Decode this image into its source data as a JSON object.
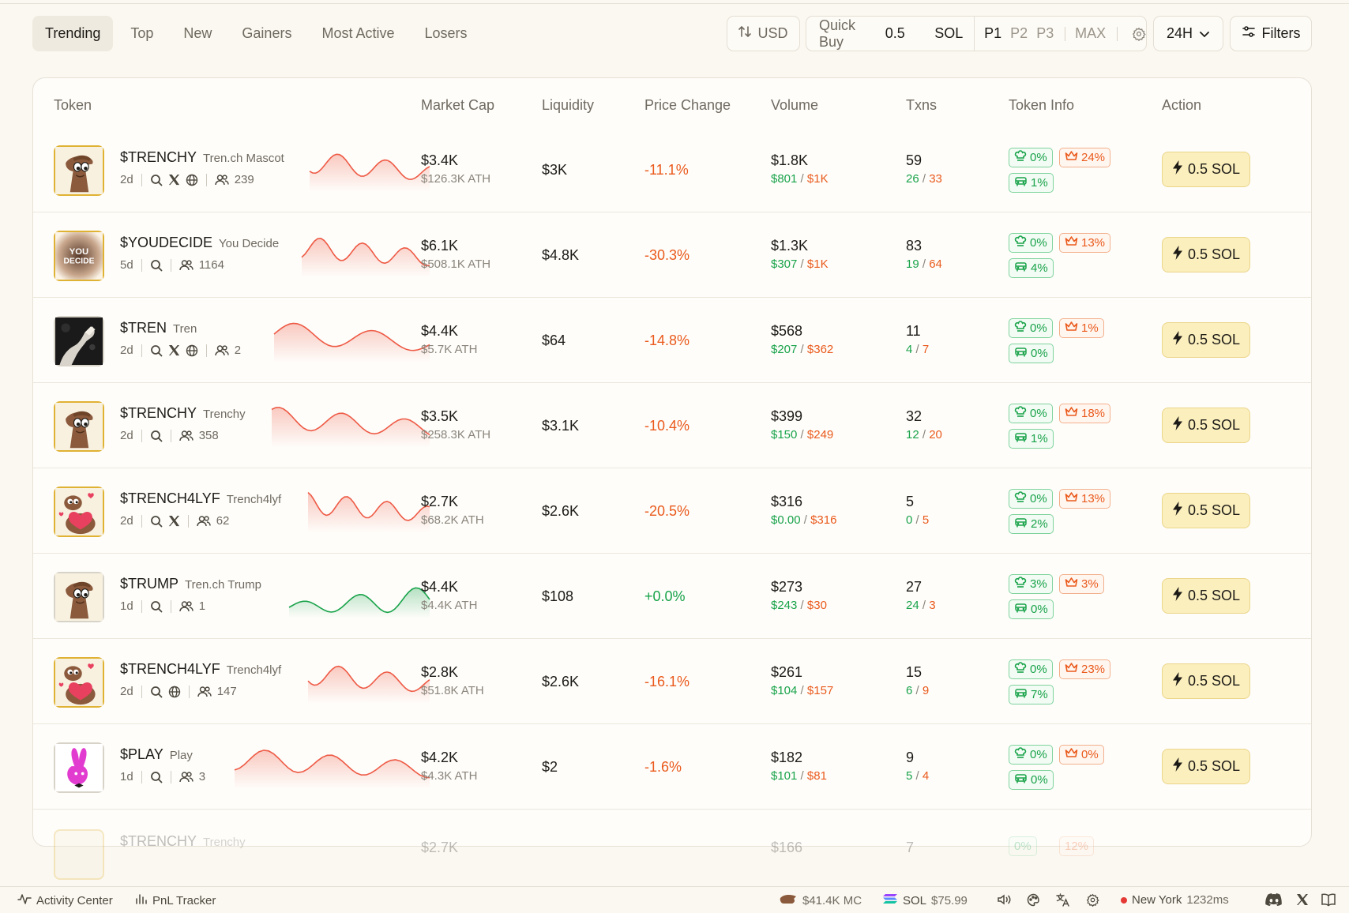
{
  "tabs": [
    "Trending",
    "Top",
    "New",
    "Gainers",
    "Most Active",
    "Losers"
  ],
  "active_tab": "Trending",
  "currency_toggle": {
    "label": "USD",
    "icon": "sort-arrows-icon"
  },
  "quick_buy": {
    "label": "Quick Buy",
    "amount": "0.5",
    "currency": "SOL",
    "presets": [
      "P1",
      "P2",
      "P3"
    ],
    "active_preset": "P1",
    "max_label": "MAX",
    "settings_icon": "gear-icon"
  },
  "timeframe": {
    "value": "24H",
    "icon": "chevron-down-icon"
  },
  "filters": {
    "label": "Filters",
    "icon": "sliders-icon"
  },
  "columns": [
    "Token",
    "Market Cap",
    "Liquidity",
    "Price Change",
    "Volume",
    "Txns",
    "Token Info",
    "Action"
  ],
  "rows": [
    {
      "symbol": "$TRENCHY",
      "name": "Tren.ch Mascot",
      "age": "2d",
      "socials": [
        "search",
        "x",
        "web"
      ],
      "holders": "239",
      "avatar": "mascot",
      "spark": "red",
      "mcap": "$3.4K",
      "ath": "$126.3K ATH",
      "liquidity": "$3K",
      "change": "-11.1%",
      "change_dir": "neg",
      "volume": "$1.8K",
      "vol_buy": "$801",
      "vol_sell": "$1K",
      "txns": "59",
      "buys": "26",
      "sells": "33",
      "top_holders": "0%",
      "dev": "24%",
      "snipers": "1%",
      "action": "0.5 SOL"
    },
    {
      "symbol": "$YOUDECIDE",
      "name": "You Decide",
      "age": "5d",
      "socials": [
        "search"
      ],
      "holders": "1164",
      "avatar": "youdecide",
      "spark": "red",
      "mcap": "$6.1K",
      "ath": "$508.1K ATH",
      "liquidity": "$4.8K",
      "change": "-30.3%",
      "change_dir": "neg",
      "volume": "$1.3K",
      "vol_buy": "$307",
      "vol_sell": "$1K",
      "txns": "83",
      "buys": "19",
      "sells": "64",
      "top_holders": "0%",
      "dev": "13%",
      "snipers": "4%",
      "action": "0.5 SOL"
    },
    {
      "symbol": "$TREN",
      "name": "Tren",
      "age": "2d",
      "socials": [
        "search",
        "x",
        "web"
      ],
      "holders": "2",
      "avatar": "dark",
      "spark": "red",
      "mcap": "$4.4K",
      "ath": "$5.7K ATH",
      "liquidity": "$64",
      "change": "-14.8%",
      "change_dir": "neg",
      "volume": "$568",
      "vol_buy": "$207",
      "vol_sell": "$362",
      "txns": "11",
      "buys": "4",
      "sells": "7",
      "top_holders": "0%",
      "dev": "1%",
      "snipers": "0%",
      "action": "0.5 SOL"
    },
    {
      "symbol": "$TRENCHY",
      "name": "Trenchy",
      "age": "2d",
      "socials": [
        "search"
      ],
      "holders": "358",
      "avatar": "mascot",
      "spark": "red",
      "mcap": "$3.5K",
      "ath": "$258.3K ATH",
      "liquidity": "$3.1K",
      "change": "-10.4%",
      "change_dir": "neg",
      "volume": "$399",
      "vol_buy": "$150",
      "vol_sell": "$249",
      "txns": "32",
      "buys": "12",
      "sells": "20",
      "top_holders": "0%",
      "dev": "18%",
      "snipers": "1%",
      "action": "0.5 SOL"
    },
    {
      "symbol": "$TRENCH4LYF",
      "name": "Trench4lyf",
      "age": "2d",
      "socials": [
        "search",
        "x"
      ],
      "holders": "62",
      "avatar": "heart",
      "spark": "red",
      "mcap": "$2.7K",
      "ath": "$68.2K ATH",
      "liquidity": "$2.6K",
      "change": "-20.5%",
      "change_dir": "neg",
      "volume": "$316",
      "vol_buy": "$0.00",
      "vol_sell": "$316",
      "txns": "5",
      "buys": "0",
      "sells": "5",
      "top_holders": "0%",
      "dev": "13%",
      "snipers": "2%",
      "action": "0.5 SOL"
    },
    {
      "symbol": "$TRUMP",
      "name": "Tren.ch Trump",
      "age": "1d",
      "socials": [
        "search"
      ],
      "holders": "1",
      "avatar": "mascot-grey",
      "spark": "green",
      "mcap": "$4.4K",
      "ath": "$4.4K ATH",
      "liquidity": "$108",
      "change": "+0.0%",
      "change_dir": "pos",
      "volume": "$273",
      "vol_buy": "$243",
      "vol_sell": "$30",
      "txns": "27",
      "buys": "24",
      "sells": "3",
      "top_holders": "3%",
      "dev": "3%",
      "snipers": "0%",
      "action": "0.5 SOL"
    },
    {
      "symbol": "$TRENCH4LYF",
      "name": "Trench4lyf",
      "age": "2d",
      "socials": [
        "search",
        "web"
      ],
      "holders": "147",
      "avatar": "heart",
      "spark": "red",
      "mcap": "$2.8K",
      "ath": "$51.8K ATH",
      "liquidity": "$2.6K",
      "change": "-16.1%",
      "change_dir": "neg",
      "volume": "$261",
      "vol_buy": "$104",
      "vol_sell": "$157",
      "txns": "15",
      "buys": "6",
      "sells": "9",
      "top_holders": "0%",
      "dev": "23%",
      "snipers": "7%",
      "action": "0.5 SOL"
    },
    {
      "symbol": "$PLAY",
      "name": "Play",
      "age": "1d",
      "socials": [
        "search"
      ],
      "holders": "3",
      "avatar": "bunny",
      "spark": "red",
      "mcap": "$4.2K",
      "ath": "$4.3K ATH",
      "liquidity": "$2",
      "change": "-1.6%",
      "change_dir": "neg",
      "volume": "$182",
      "vol_buy": "$101",
      "vol_sell": "$81",
      "txns": "9",
      "buys": "5",
      "sells": "4",
      "top_holders": "0%",
      "dev": "0%",
      "snipers": "0%",
      "action": "0.5 SOL"
    }
  ],
  "partial_row": {
    "symbol": "$TRENCHY",
    "name": "Trenchy",
    "mcap": "$2.7K",
    "volume": "$166",
    "txns": "7",
    "top_holders": "0%",
    "dev": "12%"
  },
  "footer": {
    "activity": "Activity Center",
    "pnl": "PnL Tracker",
    "mc": "$41.4K MC",
    "sol_label": "SOL",
    "sol_price": "$75.99",
    "region": "New York",
    "latency": "1232ms"
  },
  "colors": {
    "green": "#19a34a",
    "red": "#ea5a1c",
    "accent": "#fbefbd",
    "border": "#e6e1d6"
  }
}
